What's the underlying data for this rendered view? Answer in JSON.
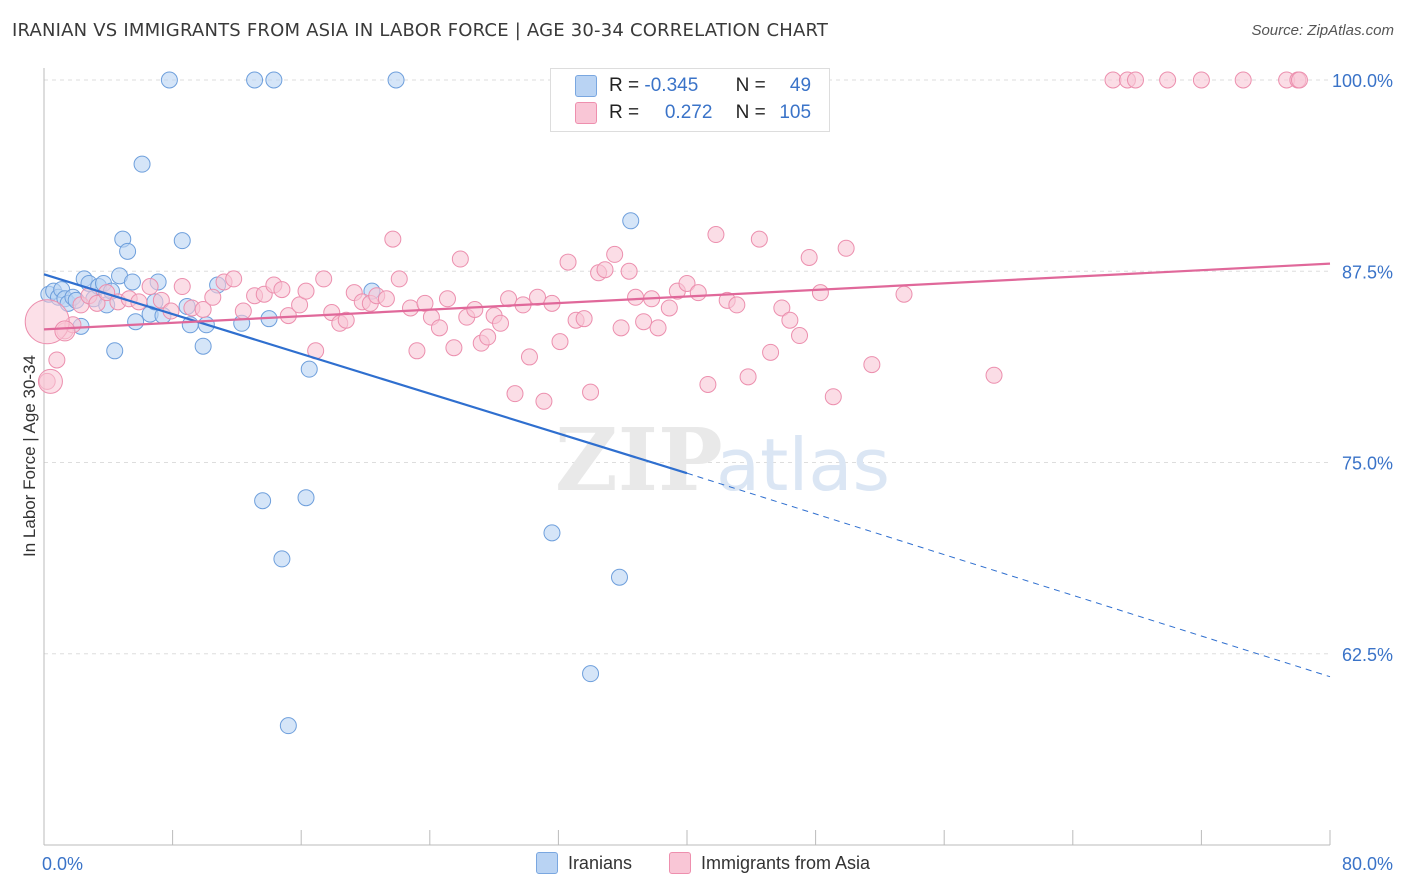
{
  "title": "IRANIAN VS IMMIGRANTS FROM ASIA IN LABOR FORCE | AGE 30-34 CORRELATION CHART",
  "source": "Source: ZipAtlas.com",
  "watermark": {
    "zip": "ZIP",
    "atlas": "atlas"
  },
  "legend": {
    "r_label": "R =",
    "n_label": "N =",
    "rows": [
      {
        "r": "-0.345",
        "n": "49",
        "fill": "#b9d3f3",
        "stroke": "#7aa7e0"
      },
      {
        "r": "0.272",
        "n": "105",
        "fill": "#f9c6d6",
        "stroke": "#ee8fae"
      }
    ]
  },
  "bottom_legend": [
    "Iranians",
    "Immigrants from Asia"
  ],
  "colors": {
    "blue_fill": "#b9d3f3",
    "blue_stroke": "#6e9fdc",
    "blue_line": "#2f6fcf",
    "pink_fill": "#f9c6d6",
    "pink_stroke": "#ec8fae",
    "pink_line": "#e0689a",
    "tick_text": "#3a73c8",
    "grid": "#dddddd"
  },
  "chart_data": {
    "type": "scatter",
    "title": "IRANIAN VS IMMIGRANTS FROM ASIA IN LABOR FORCE | AGE 30-34 CORRELATION CHART",
    "xlabel": "",
    "ylabel": "In Labor Force | Age 30-34",
    "xlim": [
      0,
      80
    ],
    "ylim": [
      50,
      100
    ],
    "x_tick_labels": [
      "0.0%",
      "80.0%"
    ],
    "y_ticks": [
      100,
      87.5,
      75,
      62.5
    ],
    "y_tick_labels": [
      "100.0%",
      "87.5%",
      "75.0%",
      "62.5%"
    ],
    "grid": true,
    "series": [
      {
        "name": "Iranians",
        "r": -0.345,
        "n": 49,
        "points": [
          [
            0.3,
            86.0
          ],
          [
            0.6,
            86.2
          ],
          [
            0.9,
            85.8
          ],
          [
            1.1,
            86.3
          ],
          [
            1.3,
            85.7
          ],
          [
            1.5,
            85.4
          ],
          [
            1.8,
            85.8
          ],
          [
            2.0,
            85.6
          ],
          [
            2.3,
            83.9
          ],
          [
            2.5,
            87.0
          ],
          [
            2.8,
            86.7
          ],
          [
            3.1,
            85.7
          ],
          [
            3.4,
            86.5
          ],
          [
            3.7,
            86.7
          ],
          [
            3.9,
            85.3
          ],
          [
            4.2,
            86.2
          ],
          [
            4.4,
            82.3
          ],
          [
            4.7,
            87.2
          ],
          [
            4.9,
            89.6
          ],
          [
            5.2,
            88.8
          ],
          [
            5.5,
            86.8
          ],
          [
            5.7,
            84.2
          ],
          [
            6.1,
            94.5
          ],
          [
            6.6,
            84.7
          ],
          [
            6.9,
            85.5
          ],
          [
            7.1,
            86.8
          ],
          [
            7.4,
            84.6
          ],
          [
            7.8,
            100.0
          ],
          [
            8.6,
            89.5
          ],
          [
            8.9,
            85.2
          ],
          [
            9.1,
            84.0
          ],
          [
            9.9,
            82.6
          ],
          [
            10.1,
            84.0
          ],
          [
            10.8,
            86.6
          ],
          [
            12.3,
            84.1
          ],
          [
            13.1,
            100.0
          ],
          [
            13.6,
            72.5
          ],
          [
            14.0,
            84.4
          ],
          [
            14.3,
            100.0
          ],
          [
            14.8,
            68.7
          ],
          [
            15.2,
            57.8
          ],
          [
            16.3,
            72.7
          ],
          [
            16.5,
            81.1
          ],
          [
            20.4,
            86.2
          ],
          [
            21.9,
            100.0
          ],
          [
            31.6,
            70.4
          ],
          [
            34.0,
            61.2
          ],
          [
            35.8,
            67.5
          ],
          [
            36.5,
            90.8
          ]
        ]
      },
      {
        "name": "Immigrants from Asia",
        "r": 0.272,
        "n": 105,
        "points": [
          [
            0.2,
            80.3
          ],
          [
            0.8,
            81.7
          ],
          [
            1.3,
            83.6
          ],
          [
            1.8,
            84.0
          ],
          [
            2.3,
            85.3
          ],
          [
            2.8,
            85.9
          ],
          [
            3.3,
            85.4
          ],
          [
            3.9,
            86.1
          ],
          [
            4.6,
            85.5
          ],
          [
            5.3,
            85.7
          ],
          [
            5.9,
            85.5
          ],
          [
            6.6,
            86.5
          ],
          [
            7.3,
            85.6
          ],
          [
            7.9,
            84.9
          ],
          [
            8.6,
            86.5
          ],
          [
            9.2,
            85.1
          ],
          [
            9.9,
            85.0
          ],
          [
            10.5,
            85.8
          ],
          [
            11.2,
            86.8
          ],
          [
            11.8,
            87.0
          ],
          [
            12.4,
            84.9
          ],
          [
            13.1,
            85.9
          ],
          [
            13.7,
            86.0
          ],
          [
            14.3,
            86.6
          ],
          [
            14.8,
            86.3
          ],
          [
            15.2,
            84.6
          ],
          [
            15.9,
            85.3
          ],
          [
            16.3,
            86.2
          ],
          [
            16.9,
            82.3
          ],
          [
            17.4,
            87.0
          ],
          [
            17.9,
            84.8
          ],
          [
            18.4,
            84.1
          ],
          [
            18.8,
            84.3
          ],
          [
            19.3,
            86.1
          ],
          [
            19.8,
            85.5
          ],
          [
            20.3,
            85.4
          ],
          [
            20.7,
            85.9
          ],
          [
            21.3,
            85.7
          ],
          [
            21.7,
            89.6
          ],
          [
            22.1,
            87.0
          ],
          [
            22.8,
            85.1
          ],
          [
            23.2,
            82.3
          ],
          [
            23.7,
            85.4
          ],
          [
            24.1,
            84.5
          ],
          [
            24.6,
            83.8
          ],
          [
            25.1,
            85.7
          ],
          [
            25.5,
            82.5
          ],
          [
            25.9,
            88.3
          ],
          [
            26.3,
            84.5
          ],
          [
            26.8,
            85.0
          ],
          [
            27.2,
            82.8
          ],
          [
            27.6,
            83.2
          ],
          [
            28.0,
            84.6
          ],
          [
            28.4,
            84.1
          ],
          [
            28.9,
            85.7
          ],
          [
            29.3,
            79.5
          ],
          [
            29.8,
            85.3
          ],
          [
            30.2,
            81.9
          ],
          [
            30.7,
            85.8
          ],
          [
            31.1,
            79.0
          ],
          [
            31.6,
            85.4
          ],
          [
            32.1,
            82.9
          ],
          [
            32.6,
            88.1
          ],
          [
            33.1,
            84.3
          ],
          [
            33.6,
            84.4
          ],
          [
            34.0,
            79.6
          ],
          [
            34.5,
            87.4
          ],
          [
            34.9,
            87.6
          ],
          [
            35.5,
            88.6
          ],
          [
            35.9,
            83.8
          ],
          [
            36.4,
            87.5
          ],
          [
            36.8,
            85.8
          ],
          [
            37.3,
            84.2
          ],
          [
            37.8,
            85.7
          ],
          [
            38.2,
            83.8
          ],
          [
            38.9,
            85.1
          ],
          [
            39.4,
            86.2
          ],
          [
            40.0,
            86.7
          ],
          [
            40.7,
            86.1
          ],
          [
            41.3,
            80.1
          ],
          [
            41.8,
            89.9
          ],
          [
            42.5,
            85.6
          ],
          [
            43.1,
            85.3
          ],
          [
            43.8,
            80.6
          ],
          [
            44.5,
            89.6
          ],
          [
            45.2,
            82.2
          ],
          [
            45.9,
            85.1
          ],
          [
            46.4,
            84.3
          ],
          [
            47.0,
            83.3
          ],
          [
            47.6,
            88.4
          ],
          [
            48.3,
            86.1
          ],
          [
            49.1,
            79.3
          ],
          [
            49.9,
            89.0
          ],
          [
            51.5,
            81.4
          ],
          [
            53.5,
            86.0
          ],
          [
            59.1,
            80.7
          ],
          [
            66.5,
            100.0
          ],
          [
            67.4,
            100.0
          ],
          [
            67.9,
            100.0
          ],
          [
            69.9,
            100.0
          ],
          [
            72.0,
            100.0
          ],
          [
            74.6,
            100.0
          ],
          [
            77.3,
            100.0
          ],
          [
            78.0,
            100.0
          ],
          [
            78.1,
            100.0
          ]
        ]
      }
    ],
    "trend_lines": [
      {
        "series": "Iranians",
        "x0": 0,
        "y0": 87.3,
        "x1": 40,
        "y1": 74.3,
        "dashed_to_x": 80,
        "dashed_to_y": 61.0
      },
      {
        "series": "Immigrants from Asia",
        "x0": 0,
        "y0": 83.7,
        "x1": 80,
        "y1": 88.0
      }
    ]
  }
}
